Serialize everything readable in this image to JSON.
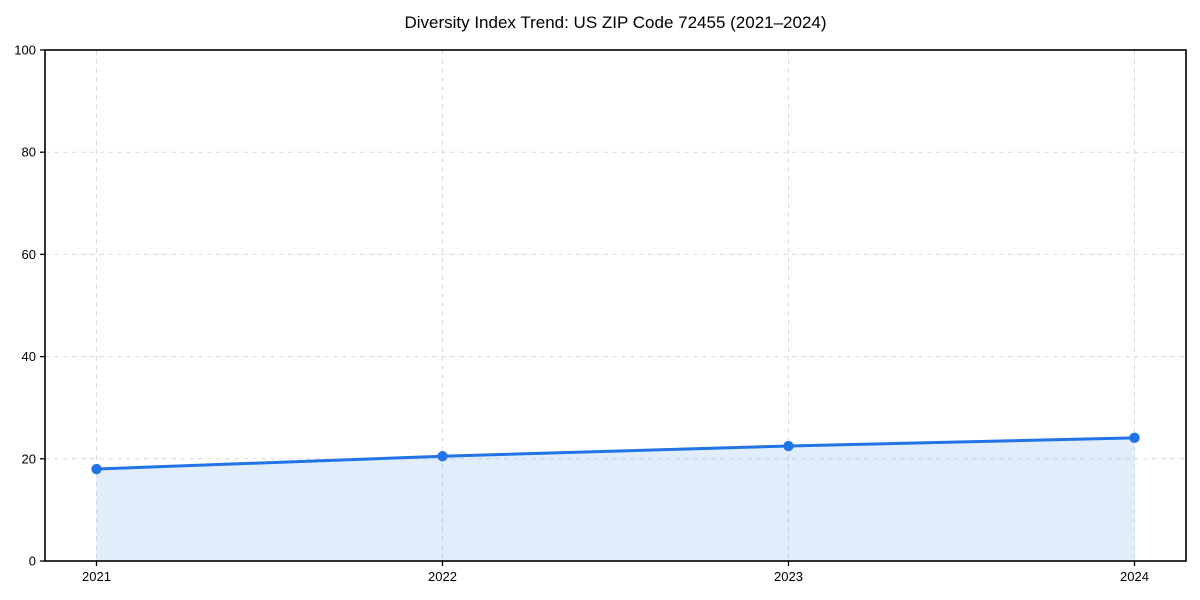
{
  "chart_data": {
    "type": "line",
    "title": "Diversity Index Trend: US ZIP Code 72455 (2021–2024)",
    "categories": [
      "2021",
      "2022",
      "2023",
      "2024"
    ],
    "series": [
      {
        "name": "Diversity Index",
        "values": [
          18.0,
          20.5,
          22.5,
          24.1
        ]
      }
    ],
    "xlabel": "",
    "ylabel": "",
    "ylim": [
      0,
      100
    ],
    "yticks": [
      0,
      20,
      40,
      60,
      80,
      100
    ],
    "grid": "dashed",
    "legend": "none",
    "area_fill": true,
    "colors": {
      "line": "#2273e6",
      "marker": "#2273e6",
      "fill": "rgba(34, 115, 230, 0.13)",
      "grid": "#dcdcdc",
      "spine": "#000000",
      "text": "#000000"
    }
  }
}
